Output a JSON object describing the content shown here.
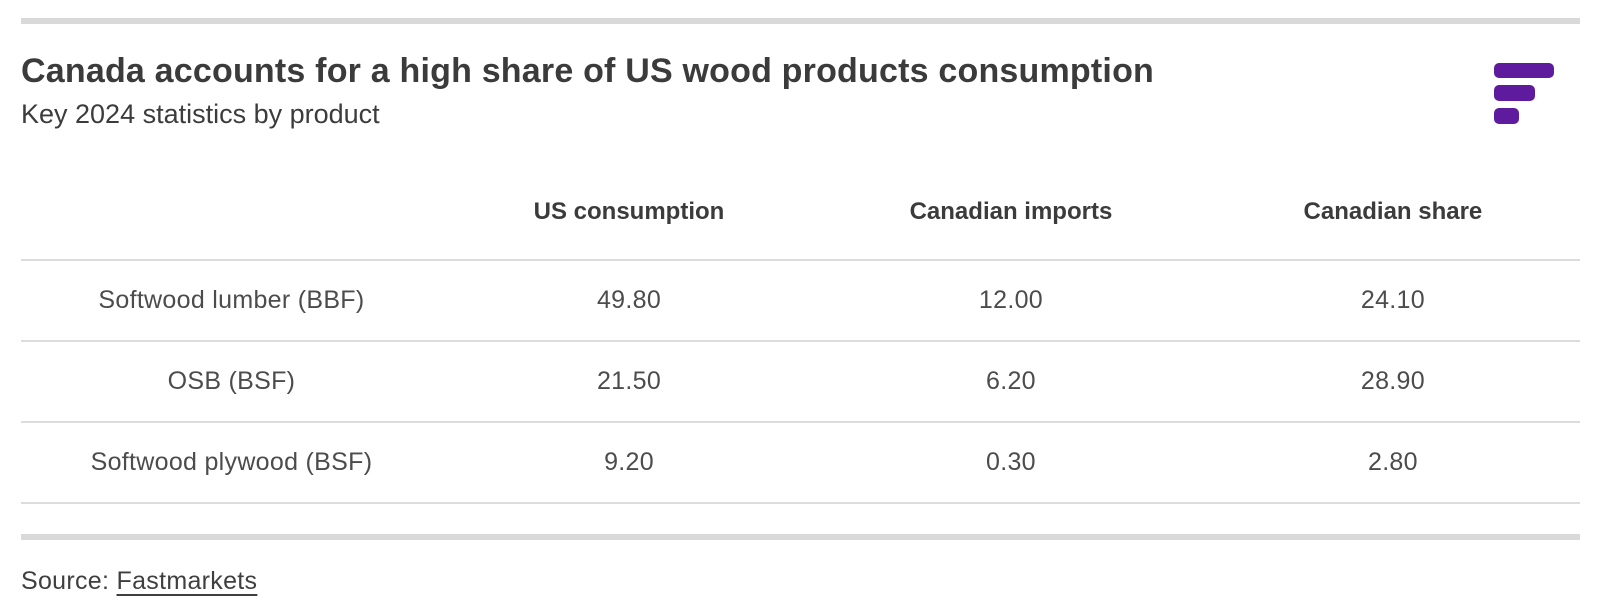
{
  "header": {
    "title": "Canada accounts for a high share of US wood products consumption",
    "subtitle": "Key 2024 statistics by product"
  },
  "logo": {
    "name": "fastmarkets-logo",
    "color": "#5e1b9e"
  },
  "table": {
    "columns": [
      "",
      "US consumption",
      "Canadian imports",
      "Canadian share"
    ],
    "rows": [
      {
        "product": "Softwood lumber (BBF)",
        "values": [
          "49.80",
          "12.00",
          "24.10"
        ]
      },
      {
        "product": "OSB (BSF)",
        "values": [
          "21.50",
          "6.20",
          "28.90"
        ]
      },
      {
        "product": "Softwood plywood (BSF)",
        "values": [
          "9.20",
          "0.30",
          "2.80"
        ]
      }
    ]
  },
  "source": {
    "prefix": "Source: ",
    "link_text": "Fastmarkets"
  },
  "colors": {
    "accent_purple": "#5e1b9e",
    "rule_gray": "#d9d9d9",
    "divider_gray": "#dcdcdc",
    "title_text": "#3b3b3b",
    "body_text": "#4c4c4c"
  },
  "chart_data": {
    "type": "table",
    "title": "Canada accounts for a high share of US wood products consumption",
    "subtitle": "Key 2024 statistics by product",
    "columns": [
      "",
      "US consumption",
      "Canadian imports",
      "Canadian share"
    ],
    "rows": [
      {
        "product": "Softwood lumber (BBF)",
        "us_consumption": 49.8,
        "canadian_imports": 12.0,
        "canadian_share": 24.1
      },
      {
        "product": "OSB (BSF)",
        "us_consumption": 21.5,
        "canadian_imports": 6.2,
        "canadian_share": 28.9
      },
      {
        "product": "Softwood plywood (BSF)",
        "us_consumption": 9.2,
        "canadian_imports": 0.3,
        "canadian_share": 2.8
      }
    ],
    "source": "Fastmarkets",
    "layout": {
      "grid": "horizontal-row-dividers",
      "value_alignment": "center",
      "header_bold": true
    }
  }
}
